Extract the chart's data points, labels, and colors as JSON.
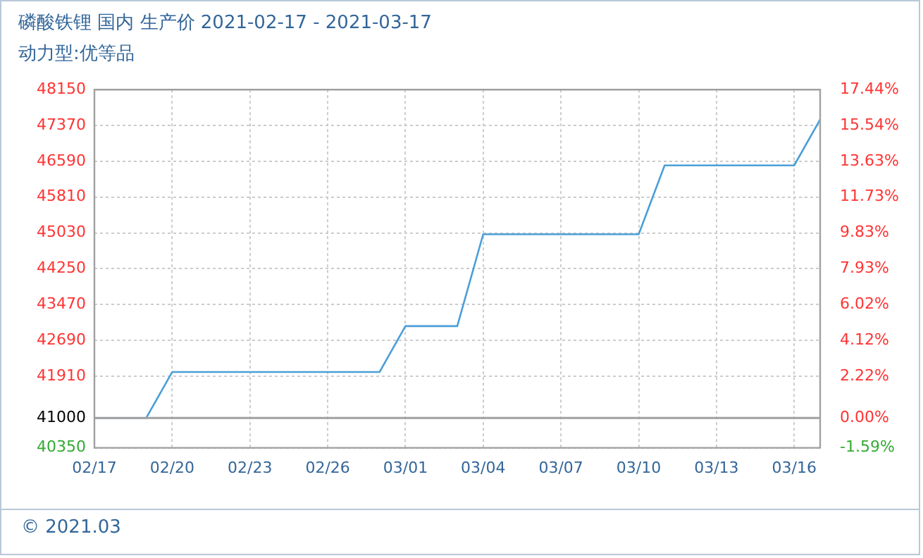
{
  "chart_data": {
    "type": "line",
    "title": "磷酸铁锂 国内 生产价 2021-02-17 - 2021-03-17",
    "subtitle": "动力型:优等品",
    "categories": [
      "02/17",
      null,
      null,
      "02/20",
      null,
      null,
      "02/23",
      null,
      null,
      "02/26",
      null,
      null,
      "03/01",
      null,
      null,
      "03/04",
      null,
      null,
      "03/07",
      null,
      null,
      "03/10",
      null,
      null,
      "03/13",
      null,
      null,
      "03/16",
      null
    ],
    "series": [
      {
        "color": "#4a9fd8",
        "values": [
          41000,
          41000,
          41000,
          42000,
          42000,
          42000,
          42000,
          42000,
          42000,
          42000,
          42000,
          42000,
          43000,
          43000,
          43000,
          45000,
          45000,
          45000,
          45000,
          45000,
          45000,
          45000,
          46500,
          46500,
          46500,
          46500,
          46500,
          46500,
          47500
        ]
      }
    ],
    "ylim": [
      40350,
      48150
    ],
    "yticks": [
      40350,
      41000,
      41910,
      42690,
      43470,
      44250,
      45030,
      45810,
      46590,
      47370,
      48150
    ],
    "y2lim": [
      -1.59,
      17.44
    ],
    "y2ticks": [
      {
        "value": -1.59,
        "label": "-1.59%"
      },
      {
        "value": 0,
        "label": "0.00%"
      },
      {
        "value": 2.22,
        "label": "2.22%"
      },
      {
        "value": 4.12,
        "label": "4.12%"
      },
      {
        "value": 6.02,
        "label": "6.02%"
      },
      {
        "value": 7.93,
        "label": "7.93%"
      },
      {
        "value": 9.83,
        "label": "9.83%"
      },
      {
        "value": 11.73,
        "label": "11.73%"
      },
      {
        "value": 13.63,
        "label": "13.63%"
      },
      {
        "value": 15.54,
        "label": "15.54%"
      },
      {
        "value": 17.44,
        "label": "17.44%"
      }
    ],
    "ref_lines": [
      {
        "axis": "y",
        "value": 41000,
        "color": "#a0a0a0"
      }
    ],
    "grid": true,
    "legend": false,
    "marker": "none",
    "annotations": [
      "© 2021.03"
    ]
  }
}
